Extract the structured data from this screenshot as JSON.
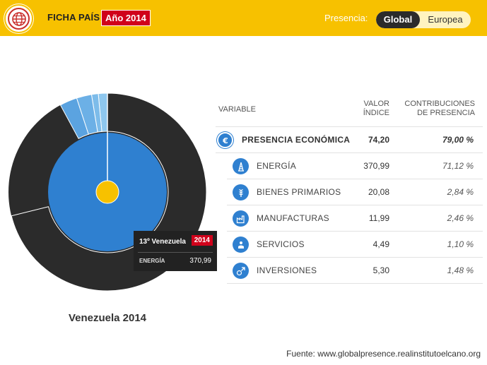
{
  "header": {
    "title": "FICHA PAÍS",
    "year_badge": "Año 2014",
    "presencia_label": "Presencia:",
    "toggle": {
      "global": "Global",
      "europea": "Europea",
      "selected": "Global"
    },
    "icons": {
      "logo": "globe-icon"
    }
  },
  "colors": {
    "header_bg": "#f7c100",
    "badge_red": "#d0021b",
    "dark": "#2b2b2b",
    "blue": "#2f80d0",
    "blue_light": "#5ba3e0",
    "center": "#f7c100"
  },
  "chart": {
    "caption": "Venezuela 2014",
    "tooltip": {
      "title": "13º Venezuela",
      "year": "2014",
      "label": "ENERGÍA",
      "value": "370,99"
    }
  },
  "chart_data": {
    "type": "pie",
    "inner_ring": [
      {
        "label": "PRESENCIA ECONÓMICA",
        "value": 79.0
      }
    ],
    "outer_ring": [
      {
        "label": "ENERGÍA",
        "value": 71.12
      },
      {
        "label": "BIENES PRIMARIOS",
        "value": 2.84
      },
      {
        "label": "MANUFACTURAS",
        "value": 2.46
      },
      {
        "label": "SERVICIOS",
        "value": 1.1
      },
      {
        "label": "INVERSIONES",
        "value": 1.48
      }
    ],
    "units": "%"
  },
  "table": {
    "headers": {
      "variable": "VARIABLE",
      "valor_line1": "VALOR",
      "valor_line2": "ÍNDICE",
      "contrib_line1": "CONTRIBUCIONES",
      "contrib_line2": "DE PRESENCIA"
    },
    "rows": [
      {
        "name": "PRESENCIA ECONÓMICA",
        "valor": "74,20",
        "contrib": "79,00 %",
        "icon": "euro-icon",
        "level": "main"
      },
      {
        "name": "ENERGÍA",
        "valor": "370,99",
        "contrib": "71,12 %",
        "icon": "oil-rig-icon",
        "level": "sub"
      },
      {
        "name": "BIENES PRIMARIOS",
        "valor": "20,08",
        "contrib": "2,84 %",
        "icon": "wheat-icon",
        "level": "sub"
      },
      {
        "name": "MANUFACTURAS",
        "valor": "11,99",
        "contrib": "2,46 %",
        "icon": "factory-icon",
        "level": "sub"
      },
      {
        "name": "SERVICIOS",
        "valor": "4,49",
        "contrib": "1,10 %",
        "icon": "service-icon",
        "level": "sub"
      },
      {
        "name": "INVERSIONES",
        "valor": "5,30",
        "contrib": "1,48 %",
        "icon": "investment-icon",
        "level": "sub"
      }
    ]
  },
  "footer": {
    "source": "Fuente: www.globalpresence.realinstitutoelcano.org"
  }
}
